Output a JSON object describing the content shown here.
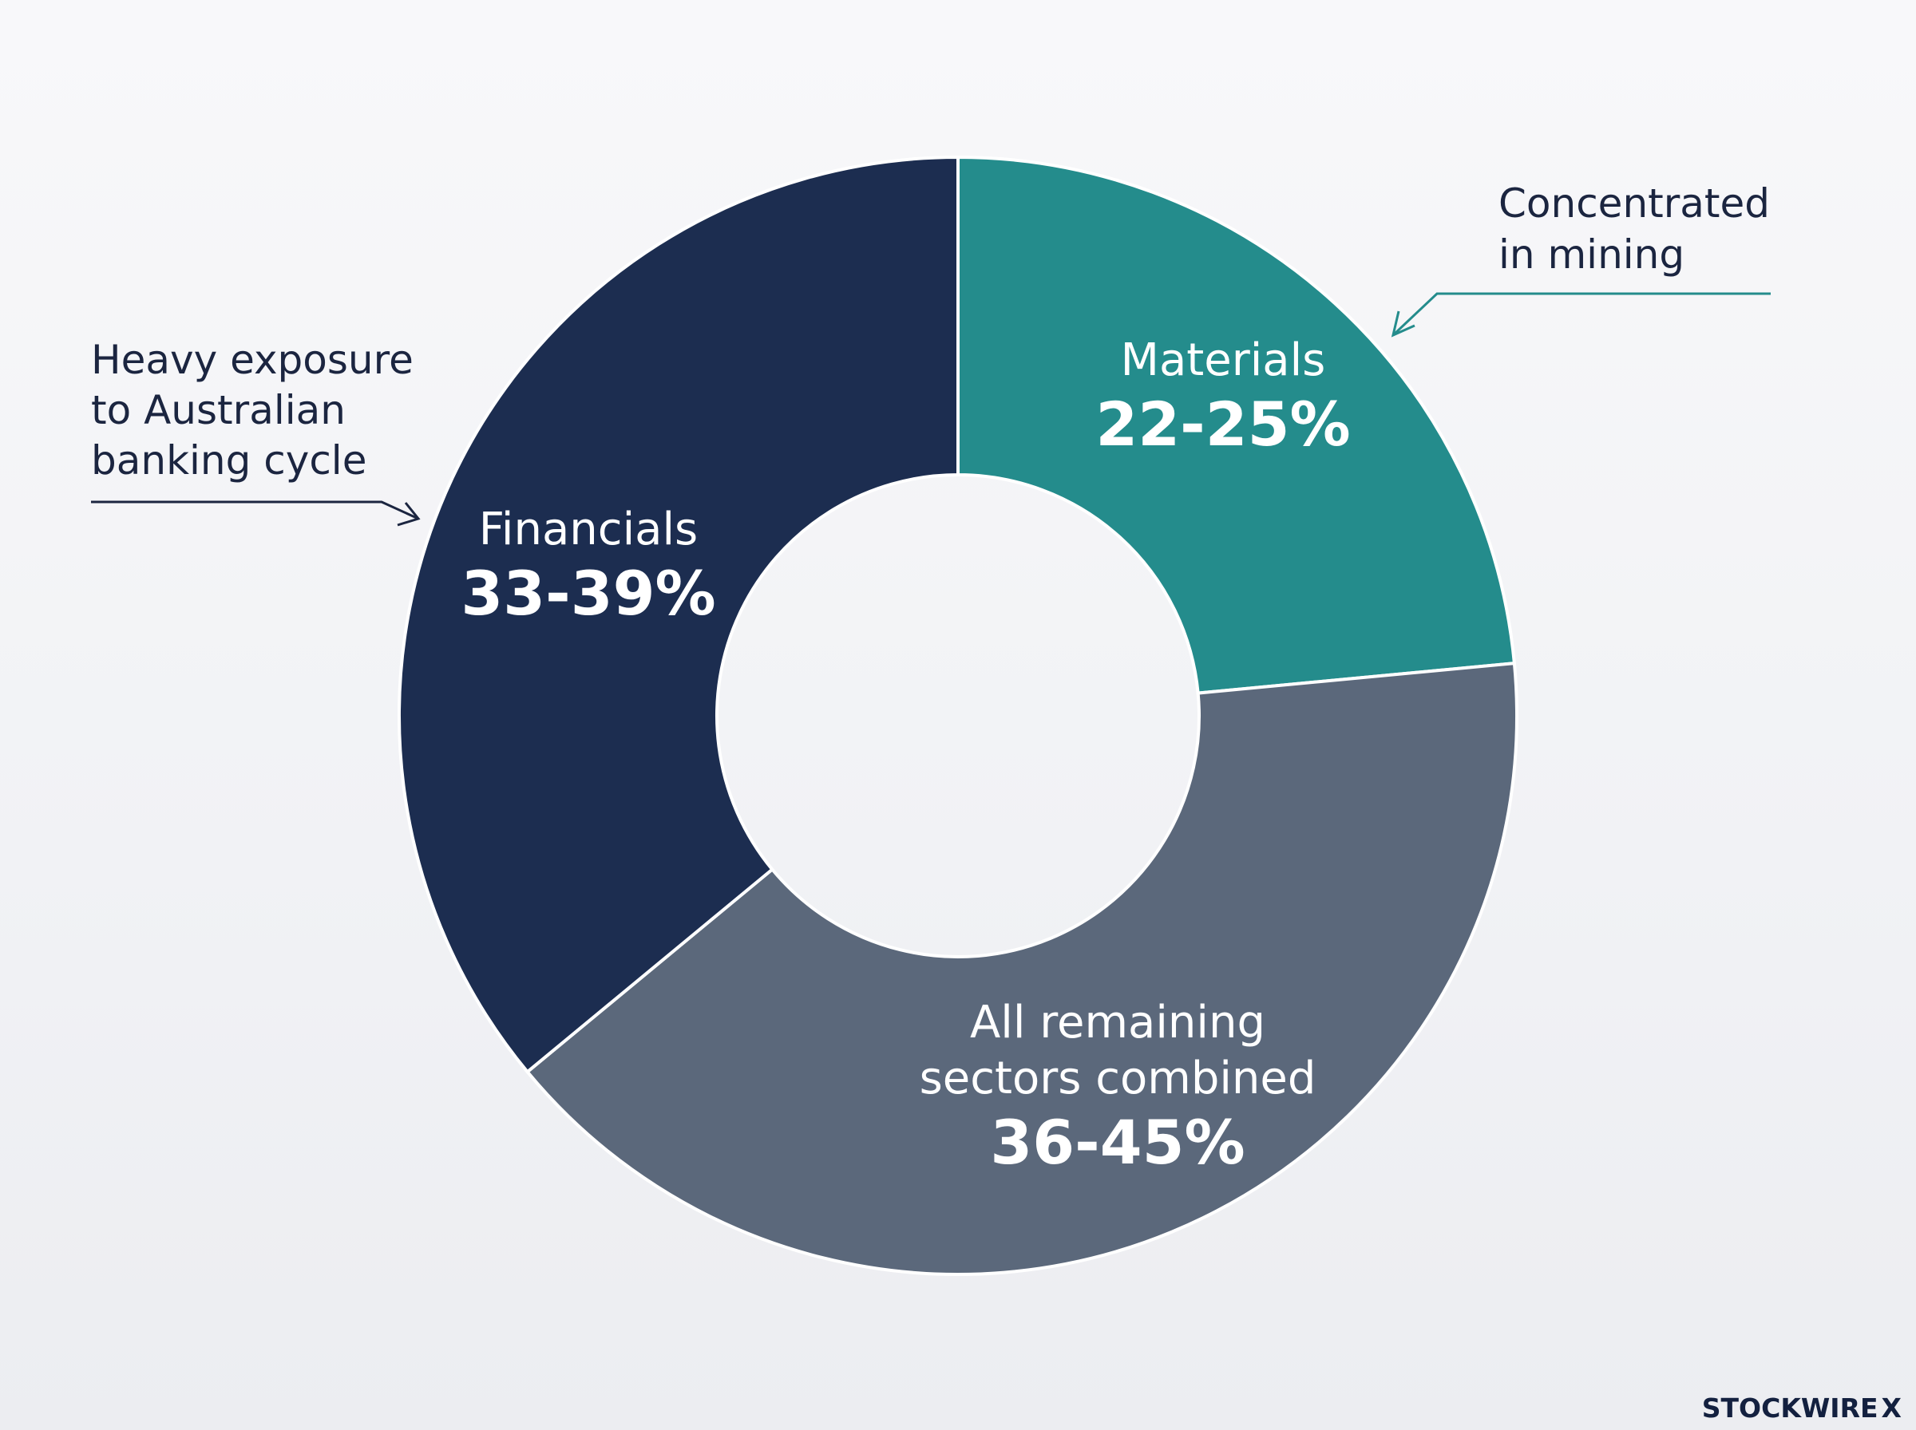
{
  "chart_data": {
    "type": "pie",
    "donut": true,
    "title": "",
    "slices": [
      {
        "label": "Materials",
        "value_text": "22-25%",
        "value_low": 22,
        "value_high": 25,
        "value_mid": 23.5,
        "color": "#248c8c"
      },
      {
        "label": "All remaining sectors combined",
        "label_lines": [
          "All remaining",
          "sectors combined"
        ],
        "value_text": "36-45%",
        "value_low": 36,
        "value_high": 45,
        "value_mid": 40.5,
        "color": "#5b687b"
      },
      {
        "label": "Financials",
        "value_text": "33-39%",
        "value_low": 33,
        "value_high": 39,
        "value_mid": 36,
        "color": "#1c2d50"
      }
    ],
    "annotations": [
      {
        "target": "Materials",
        "lines": [
          "Concentrated",
          "in mining"
        ],
        "color": "#248c8c"
      },
      {
        "target": "Financials",
        "lines": [
          "Heavy exposure",
          "to Australian",
          "banking cycle"
        ],
        "color": "#1b2540"
      }
    ],
    "legend": "none"
  },
  "brand": {
    "name": "STOCKWIRE",
    "mark": "X"
  }
}
